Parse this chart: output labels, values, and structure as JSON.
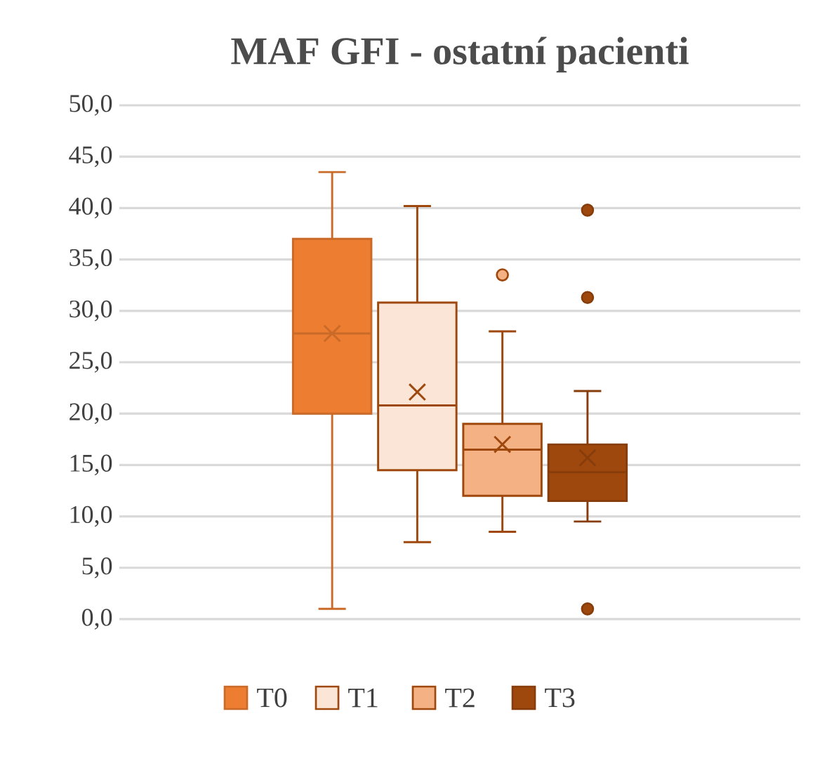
{
  "chart_data": {
    "type": "box",
    "title": "MAF GFI - ostatní pacienti",
    "categories": [
      null
    ],
    "series": [
      {
        "name": "T0",
        "color": "#ed7d31",
        "boxes": [
          {
            "low": 1.0,
            "q1": 20.0,
            "median": 27.8,
            "q3": 37.0,
            "high": 43.5,
            "mean": 27.8
          }
        ]
      },
      {
        "name": "T1",
        "color": "#fbe5d6",
        "boxes": [
          {
            "low": 7.5,
            "q1": 14.5,
            "median": 20.8,
            "q3": 30.8,
            "high": 40.2,
            "mean": 22.1
          }
        ]
      },
      {
        "name": "T2",
        "color": "#f4b183",
        "boxes": [
          {
            "low": 8.5,
            "q1": 12.0,
            "median": 16.5,
            "q3": 19.0,
            "high": 28.0,
            "mean": 17.0,
            "outliers": [
              33.5
            ]
          }
        ]
      },
      {
        "name": "T3",
        "color": "#9e480e",
        "boxes": [
          {
            "low": 9.5,
            "q1": 11.5,
            "median": 14.3,
            "q3": 17.0,
            "high": 22.2,
            "mean": 15.7,
            "outliers": [
              39.8,
              31.3,
              1.0
            ]
          }
        ]
      }
    ],
    "ylim": [
      0,
      50
    ],
    "yticks": [
      {
        "value": 0,
        "label": "0,0"
      },
      {
        "value": 5,
        "label": "5,0"
      },
      {
        "value": 10,
        "label": "10,0"
      },
      {
        "value": 15,
        "label": "15,0"
      },
      {
        "value": 20,
        "label": "20,0"
      },
      {
        "value": 25,
        "label": "25,0"
      },
      {
        "value": 30,
        "label": "30,0"
      },
      {
        "value": 35,
        "label": "35,0"
      },
      {
        "value": 40,
        "label": "40,0"
      },
      {
        "value": 45,
        "label": "45,0"
      },
      {
        "value": 50,
        "label": "50,0"
      }
    ],
    "grid": "y",
    "legend": "bottom",
    "marker": "circle"
  }
}
